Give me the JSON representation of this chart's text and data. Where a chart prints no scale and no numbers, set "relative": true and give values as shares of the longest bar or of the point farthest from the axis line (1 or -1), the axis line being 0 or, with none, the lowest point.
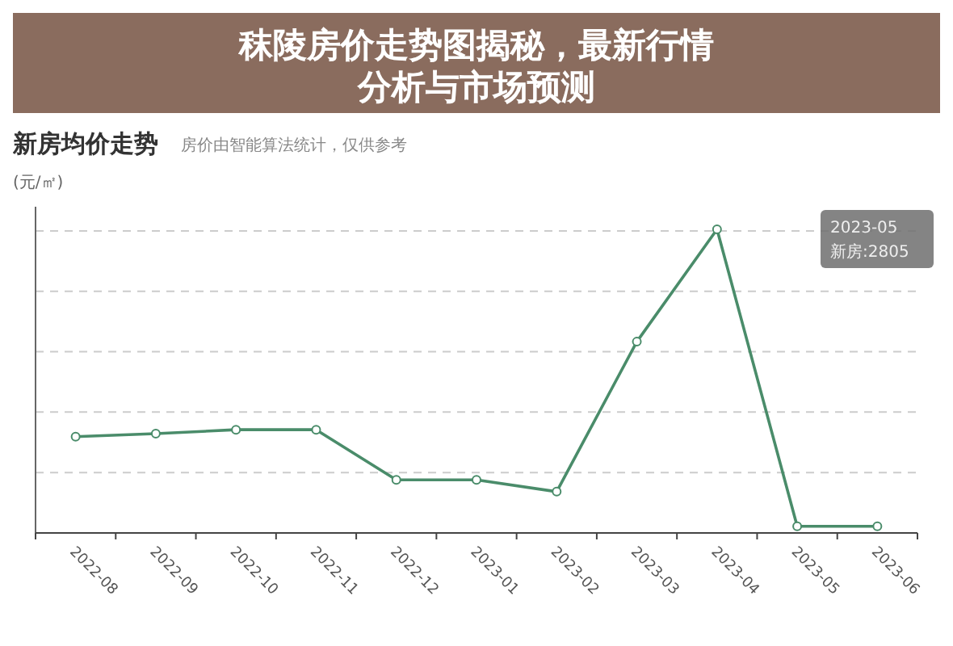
{
  "chart_data": {
    "type": "line",
    "title": "秣陵房价走势图揭秘，最新行情分析与市场预测",
    "subtitle": "新房均价走势",
    "ylabel": "(元/㎡)",
    "annotations": [
      "房价由智能算法统计，仅供参考",
      "2023-05",
      "新房:2805"
    ],
    "categories": [
      "2022-08",
      "2022-09",
      "2022-10",
      "2022-11",
      "2022-12",
      "2023-01",
      "2023-02",
      "2023-03",
      "2023-04",
      "2023-05",
      "2023-06"
    ],
    "relative": true,
    "series": [
      {
        "color": "#4a8c6a",
        "values": [
          0.317,
          0.327,
          0.34,
          0.34,
          0.175,
          0.175,
          0.136,
          0.63,
          1,
          0.022,
          0.022
        ]
      }
    ],
    "grid": "y",
    "marker": "circle",
    "line_style": "solid"
  }
}
